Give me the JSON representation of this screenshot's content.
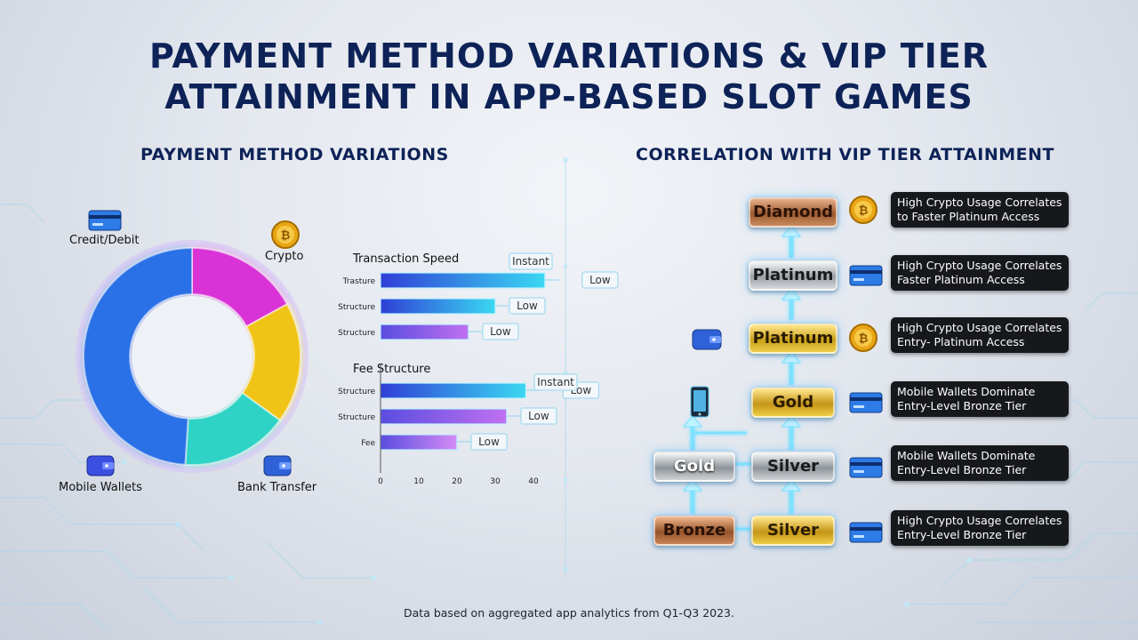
{
  "title_line1": "PAYMENT METHOD VARIATIONS & VIP TIER",
  "title_line2": "ATTAINMENT IN APP-BASED SLOT GAMES",
  "left_heading": "PAYMENT METHOD VARIATIONS",
  "right_heading": "CORRELATION WITH VIP TIER ATTAINMENT",
  "donut_labels": {
    "credit": "Credit/Debit",
    "crypto": "Crypto",
    "mobile": "Mobile Wallets",
    "bank": "Bank Transfer"
  },
  "chart_data": [
    {
      "type": "pie",
      "variant": "donut",
      "categories": [
        "Crypto",
        "Bank Transfer",
        "Mobile Wallets",
        "Credit/Debit"
      ],
      "values": [
        17,
        18,
        16,
        49
      ],
      "colors": [
        "#d932d6",
        "#f0c419",
        "#2ed3c6",
        "#2b6fe6"
      ]
    },
    {
      "type": "bar",
      "orientation": "horizontal",
      "title": "Transaction Speed",
      "categories": [
        "Trasture",
        "Structure",
        "Structure"
      ],
      "values": [
        43,
        30,
        23
      ],
      "labels": [
        "Low",
        "Low",
        "Low"
      ],
      "extra_tag": "Instant",
      "colors": [
        [
          "#2f3fd6",
          "#3ad8f2"
        ],
        [
          "#2f3fd6",
          "#3ad8f2"
        ],
        [
          "#5a4de0",
          "#c070f0"
        ]
      ]
    },
    {
      "type": "bar",
      "orientation": "horizontal",
      "title": "Fee Structure",
      "categories": [
        "Structure",
        "Structure",
        "Fee"
      ],
      "values": [
        38,
        33,
        20
      ],
      "labels": [
        "Low",
        "Low",
        "Low"
      ],
      "extra_tag": "Instant",
      "colors": [
        [
          "#2f3fd6",
          "#3ad8f2"
        ],
        [
          "#5a4de0",
          "#c070f0"
        ],
        [
          "#5a4de0",
          "#d58cf5"
        ]
      ],
      "xticks": [
        "0",
        "10",
        "20",
        "30",
        "40"
      ],
      "xlim": [
        0,
        40
      ]
    }
  ],
  "tiers": [
    {
      "label": "Diamond",
      "cls": "t-diamond"
    },
    {
      "label": "Platinum",
      "cls": "t-platinum"
    },
    {
      "label": "Platinum",
      "cls": "t-platinum2"
    },
    {
      "label": "Gold",
      "cls": "t-gold"
    },
    {
      "label": "Gold",
      "cls": "t-gold-silver"
    },
    {
      "label": "Silver",
      "cls": "t-silver"
    },
    {
      "label": "Bronze",
      "cls": "t-bronze"
    },
    {
      "label": "Silver",
      "cls": "t-silver-gold"
    }
  ],
  "notes": [
    {
      "line1": "High Crypto Usage Correlates",
      "line2": "to Faster Platinum Access",
      "icon": "bitcoin-coin-icon"
    },
    {
      "line1": "High Crypto Usage Correlates",
      "line2": "Faster Platinum Access",
      "icon": "credit-card-icon"
    },
    {
      "line1": "High Crypto Usage Correlates",
      "line2": "Entry- Platinum Access",
      "icon": "bitcoin-coin-icon"
    },
    {
      "line1": "Mobile Wallets Dominate",
      "line2": "Entry-Level Bronze Tier",
      "icon": "credit-card-icon"
    },
    {
      "line1": "Mobile Wallets Dominate",
      "line2": "Entry-Level Bronze Tier",
      "icon": "credit-card-icon"
    },
    {
      "line1": "High Crypto Usage Correlates",
      "line2": "Entry-Level Bronze Tier",
      "icon": "credit-card-icon"
    }
  ],
  "footer": "Data based on aggregated app analytics from Q1-Q3 2023."
}
